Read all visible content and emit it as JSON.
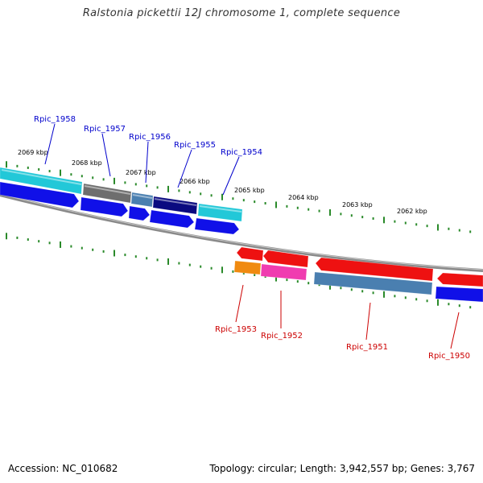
{
  "title": "Ralstonia pickettii 12J chromosome 1, complete sequence",
  "footer": {
    "accession": "Accession: NC_010682",
    "topology": "Topology: circular; Length: 3,942,557 bp; Genes: 3,767"
  },
  "colors": {
    "backbone": "#8a8a8a",
    "tick": "#2a8a2a",
    "forward_label": "#0000cc",
    "reverse_label": "#cc0000",
    "cyan": "#22c8d8",
    "gray": "#6e6e6e",
    "steel": "#4a7fb0",
    "navy": "#0a0a80",
    "blue": "#1010e8",
    "red": "#ee1111",
    "orange": "#f08a10",
    "magenta": "#f03cb0"
  },
  "scale_labels": [
    "2069 kbp",
    "2068 kbp",
    "2067 kbp",
    "2066 kbp",
    "2065 kbp",
    "2064 kbp",
    "2063 kbp",
    "2062 kbp"
  ],
  "forward_gene_labels": [
    "Rpic_1958",
    "Rpic_1957",
    "Rpic_1956",
    "Rpic_1955",
    "Rpic_1954"
  ],
  "reverse_gene_labels": [
    "Rpic_1953",
    "Rpic_1952",
    "Rpic_1951",
    "Rpic_1950"
  ]
}
